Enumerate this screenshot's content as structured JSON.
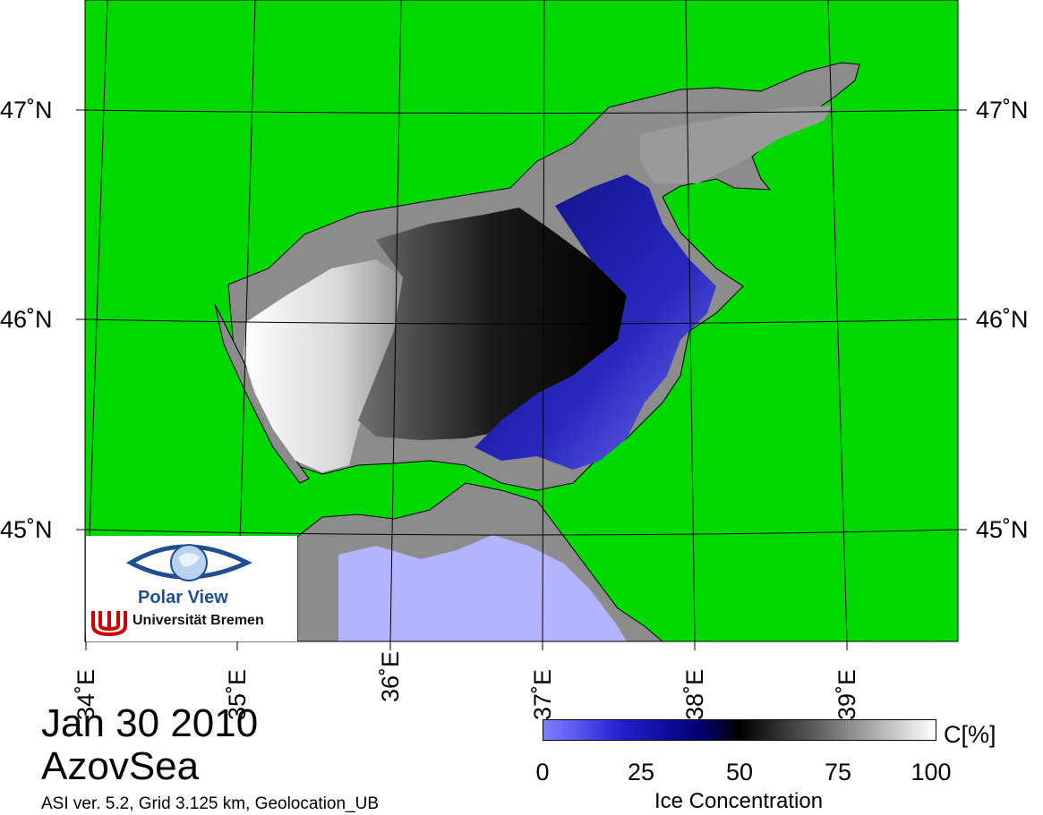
{
  "map": {
    "land_color": "#00d800",
    "coast_color": "#8c8c8c",
    "open_sea_color": "#b3b3ff",
    "lat_labels": [
      "47˚N",
      "46˚N",
      "45˚N"
    ],
    "lon_labels": [
      "34˚E",
      "35˚E",
      "36˚E",
      "37˚E",
      "38˚E",
      "39˚E"
    ]
  },
  "logo": {
    "name": "Polar View",
    "institution": "Universität Bremen"
  },
  "caption": {
    "date": "Jan 30 2010",
    "region": "AzovSea",
    "meta": "ASI ver. 5.2,  Grid 3.125 km, Geolocation_UB"
  },
  "colorbar": {
    "title": "Ice Concentration",
    "unit": "C[%]",
    "ticks": [
      "0",
      "25",
      "50",
      "75",
      "100"
    ],
    "colors": [
      "#8080ff",
      "#2020d0",
      "#000070",
      "#000000",
      "#606060",
      "#b0b0b0",
      "#ffffff"
    ]
  }
}
